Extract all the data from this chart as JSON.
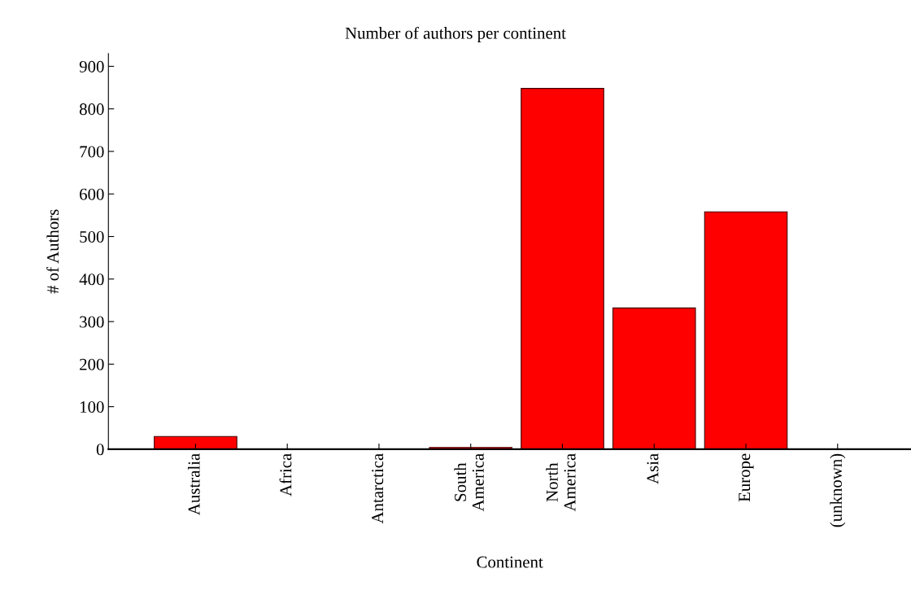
{
  "chart_data": {
    "type": "bar",
    "title": "Number of authors per continent",
    "xlabel": "Continent",
    "ylabel": "# of Authors",
    "categories": [
      "Australia",
      "Africa",
      "Antarctica",
      "South\nAmerica",
      "North\nAmerica",
      "Asia",
      "Europe",
      "(unknown)"
    ],
    "values": [
      30,
      0,
      0,
      4,
      848,
      332,
      558,
      0
    ],
    "color": "#ff0000",
    "ylim": [
      0,
      930
    ],
    "yticks": [
      0,
      100,
      200,
      300,
      400,
      500,
      600,
      700,
      800,
      900
    ],
    "grid": false
  }
}
